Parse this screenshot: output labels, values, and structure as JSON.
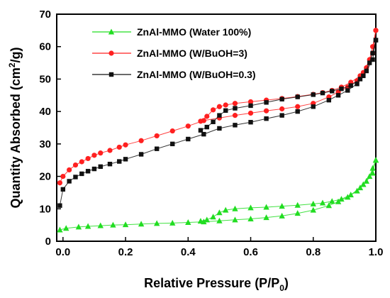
{
  "chart_data": {
    "type": "line",
    "xlabel": "Relative Pressure (P/P",
    "xlabel_sub": "0",
    "xlabel_end": ")",
    "ylabel": "Quantity Absorbed (cm",
    "ylabel_sup": "2",
    "ylabel_end": "/g)",
    "xlim": [
      -0.02,
      1.0
    ],
    "ylim": [
      0,
      70
    ],
    "xticks": [
      0.0,
      0.2,
      0.4,
      0.6,
      0.8,
      1.0
    ],
    "xtick_labels": [
      "0.0",
      "0.2",
      "0.4",
      "0.6",
      "0.8",
      "1.0"
    ],
    "yticks": [
      0,
      10,
      20,
      30,
      40,
      50,
      60,
      70
    ],
    "ytick_labels": [
      "0",
      "10",
      "20",
      "30",
      "40",
      "50",
      "60",
      "70"
    ],
    "legend_position": "top-left",
    "series": [
      {
        "name": "ZnAl-MMO (Water 100%)",
        "color": "#22dd22",
        "marker": "triangle",
        "adsorption": [
          [
            -0.01,
            3.5
          ],
          [
            0.01,
            4
          ],
          [
            0.05,
            4.4
          ],
          [
            0.08,
            4.6
          ],
          [
            0.12,
            4.8
          ],
          [
            0.16,
            5.0
          ],
          [
            0.2,
            5.1
          ],
          [
            0.25,
            5.3
          ],
          [
            0.3,
            5.5
          ],
          [
            0.35,
            5.6
          ],
          [
            0.4,
            5.8
          ],
          [
            0.45,
            6.0
          ],
          [
            0.5,
            6.3
          ],
          [
            0.55,
            6.6
          ],
          [
            0.6,
            6.9
          ],
          [
            0.65,
            7.3
          ],
          [
            0.7,
            7.8
          ],
          [
            0.75,
            8.6
          ],
          [
            0.8,
            9.6
          ],
          [
            0.85,
            11.0
          ],
          [
            0.88,
            12.2
          ],
          [
            0.91,
            13.6
          ],
          [
            0.94,
            15.5
          ],
          [
            0.96,
            17.5
          ],
          [
            0.98,
            20.0
          ],
          [
            0.99,
            22.5
          ],
          [
            1.0,
            25.0
          ]
        ],
        "desorption": [
          [
            1.0,
            25.0
          ],
          [
            0.99,
            21.0
          ],
          [
            0.97,
            18.5
          ],
          [
            0.95,
            16.5
          ],
          [
            0.92,
            14.3
          ],
          [
            0.89,
            13.0
          ],
          [
            0.86,
            12.3
          ],
          [
            0.83,
            11.8
          ],
          [
            0.8,
            11.5
          ],
          [
            0.75,
            11.1
          ],
          [
            0.7,
            10.8
          ],
          [
            0.65,
            10.5
          ],
          [
            0.6,
            10.3
          ],
          [
            0.55,
            10.0
          ],
          [
            0.52,
            9.6
          ],
          [
            0.5,
            8.8
          ],
          [
            0.48,
            7.5
          ],
          [
            0.46,
            6.6
          ],
          [
            0.44,
            6.2
          ]
        ]
      },
      {
        "name": "ZnAl-MMO (W/BuOH=3)",
        "color": "#ff2020",
        "marker": "circle",
        "adsorption": [
          [
            -0.01,
            18
          ],
          [
            0.0,
            20
          ],
          [
            0.02,
            22
          ],
          [
            0.04,
            23.5
          ],
          [
            0.06,
            24.5
          ],
          [
            0.08,
            25.5
          ],
          [
            0.1,
            26.5
          ],
          [
            0.12,
            27.2
          ],
          [
            0.15,
            28.0
          ],
          [
            0.18,
            29.0
          ],
          [
            0.2,
            29.7
          ],
          [
            0.25,
            31.0
          ],
          [
            0.3,
            32.5
          ],
          [
            0.35,
            34.0
          ],
          [
            0.4,
            35.5
          ],
          [
            0.45,
            37.2
          ],
          [
            0.5,
            38.0
          ],
          [
            0.55,
            38.8
          ],
          [
            0.6,
            39.5
          ],
          [
            0.65,
            40.2
          ],
          [
            0.7,
            40.8
          ],
          [
            0.75,
            41.5
          ],
          [
            0.8,
            42.5
          ],
          [
            0.85,
            44.5
          ],
          [
            0.88,
            46.0
          ],
          [
            0.91,
            47.5
          ],
          [
            0.94,
            49.5
          ],
          [
            0.96,
            52.0
          ],
          [
            0.98,
            56.0
          ],
          [
            0.99,
            60.0
          ],
          [
            1.0,
            65.0
          ]
        ],
        "desorption": [
          [
            1.0,
            65.0
          ],
          [
            0.99,
            58.0
          ],
          [
            0.97,
            53.5
          ],
          [
            0.95,
            51.0
          ],
          [
            0.92,
            49.0
          ],
          [
            0.89,
            47.5
          ],
          [
            0.86,
            46.5
          ],
          [
            0.83,
            45.8
          ],
          [
            0.8,
            45.3
          ],
          [
            0.75,
            44.6
          ],
          [
            0.7,
            44.0
          ],
          [
            0.65,
            43.5
          ],
          [
            0.6,
            43.0
          ],
          [
            0.55,
            42.5
          ],
          [
            0.52,
            42.0
          ],
          [
            0.5,
            41.5
          ],
          [
            0.48,
            40.5
          ],
          [
            0.46,
            38.5
          ],
          [
            0.44,
            37.0
          ]
        ]
      },
      {
        "name": "ZnAl-MMO (W/BuOH=0.3)",
        "color": "#111111",
        "marker": "square",
        "adsorption": [
          [
            -0.01,
            11
          ],
          [
            0.0,
            16
          ],
          [
            0.02,
            18.5
          ],
          [
            0.04,
            19.8
          ],
          [
            0.06,
            20.8
          ],
          [
            0.08,
            21.6
          ],
          [
            0.1,
            22.3
          ],
          [
            0.12,
            23.0
          ],
          [
            0.15,
            23.8
          ],
          [
            0.18,
            24.6
          ],
          [
            0.2,
            25.3
          ],
          [
            0.25,
            26.8
          ],
          [
            0.3,
            28.5
          ],
          [
            0.35,
            30.0
          ],
          [
            0.4,
            31.5
          ],
          [
            0.45,
            33.0
          ],
          [
            0.5,
            34.8
          ],
          [
            0.55,
            35.8
          ],
          [
            0.6,
            36.7
          ],
          [
            0.65,
            37.8
          ],
          [
            0.7,
            38.8
          ],
          [
            0.75,
            40.0
          ],
          [
            0.8,
            41.5
          ],
          [
            0.85,
            43.5
          ],
          [
            0.88,
            45.0
          ],
          [
            0.91,
            46.5
          ],
          [
            0.94,
            48.5
          ],
          [
            0.96,
            51.0
          ],
          [
            0.98,
            55.0
          ],
          [
            0.99,
            58.0
          ],
          [
            1.0,
            62.0
          ]
        ],
        "desorption": [
          [
            1.0,
            62.0
          ],
          [
            0.99,
            56.0
          ],
          [
            0.97,
            52.5
          ],
          [
            0.95,
            50.0
          ],
          [
            0.92,
            48.0
          ],
          [
            0.89,
            47.0
          ],
          [
            0.86,
            46.3
          ],
          [
            0.83,
            45.7
          ],
          [
            0.8,
            45.2
          ],
          [
            0.75,
            44.5
          ],
          [
            0.7,
            43.8
          ],
          [
            0.65,
            42.8
          ],
          [
            0.6,
            41.8
          ],
          [
            0.55,
            41.0
          ],
          [
            0.52,
            40.3
          ],
          [
            0.5,
            38.8
          ],
          [
            0.48,
            36.8
          ],
          [
            0.46,
            35.2
          ],
          [
            0.44,
            34.2
          ]
        ]
      }
    ]
  }
}
